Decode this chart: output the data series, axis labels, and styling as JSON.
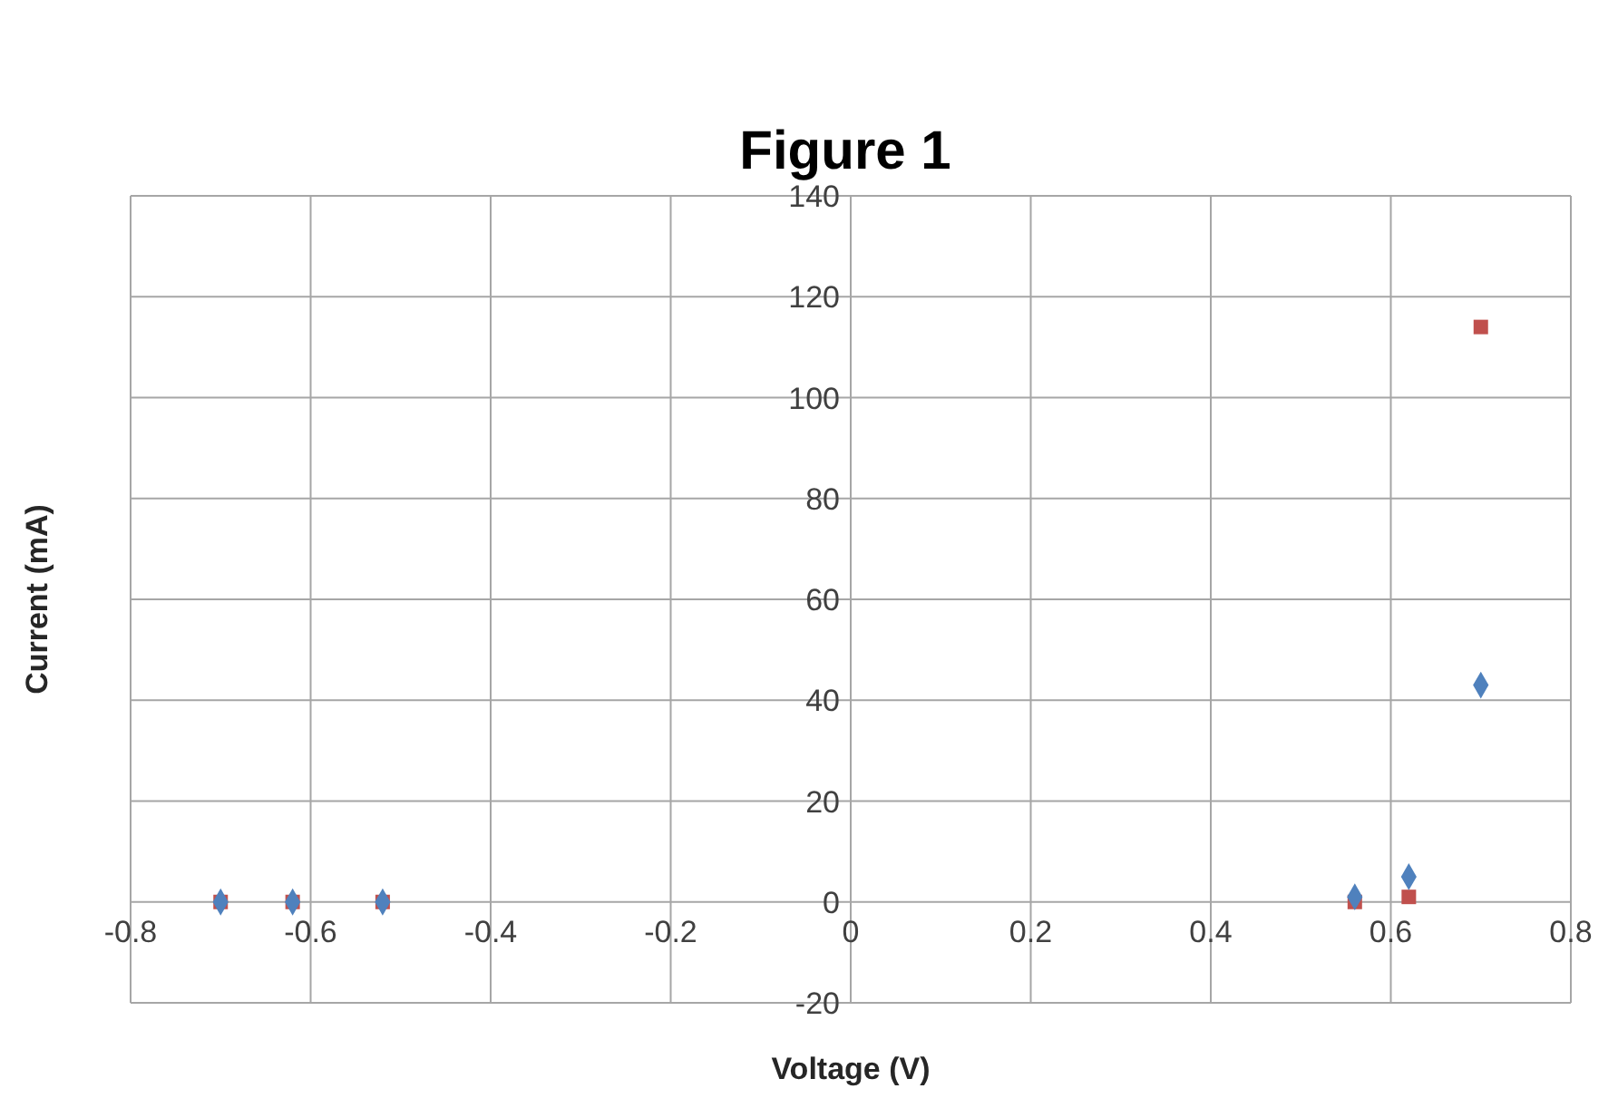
{
  "chart_data": {
    "type": "scatter",
    "title": "Figure 1",
    "xlabel": "Voltage (V)",
    "ylabel": "Current (mA)",
    "xlim": [
      -0.8,
      0.8
    ],
    "xticks": [
      -0.8,
      -0.6,
      -0.4,
      -0.2,
      0,
      0.2,
      0.4,
      0.6,
      0.8
    ],
    "ylim": [
      -20,
      140
    ],
    "yticks": [
      -20,
      0,
      20,
      40,
      60,
      80,
      100,
      120,
      140
    ],
    "grid": true,
    "series": [
      {
        "color": "#c0504d",
        "marker": "square",
        "x": [
          -0.7,
          -0.62,
          -0.52,
          0.56,
          0.62,
          0.7
        ],
        "values": [
          0,
          0,
          0,
          0,
          1,
          114
        ]
      },
      {
        "color": "#4f81bd",
        "marker": "diamond",
        "x": [
          -0.7,
          -0.62,
          -0.52,
          0.56,
          0.62,
          0.7
        ],
        "values": [
          0,
          0,
          0,
          1,
          5,
          43
        ]
      }
    ]
  }
}
